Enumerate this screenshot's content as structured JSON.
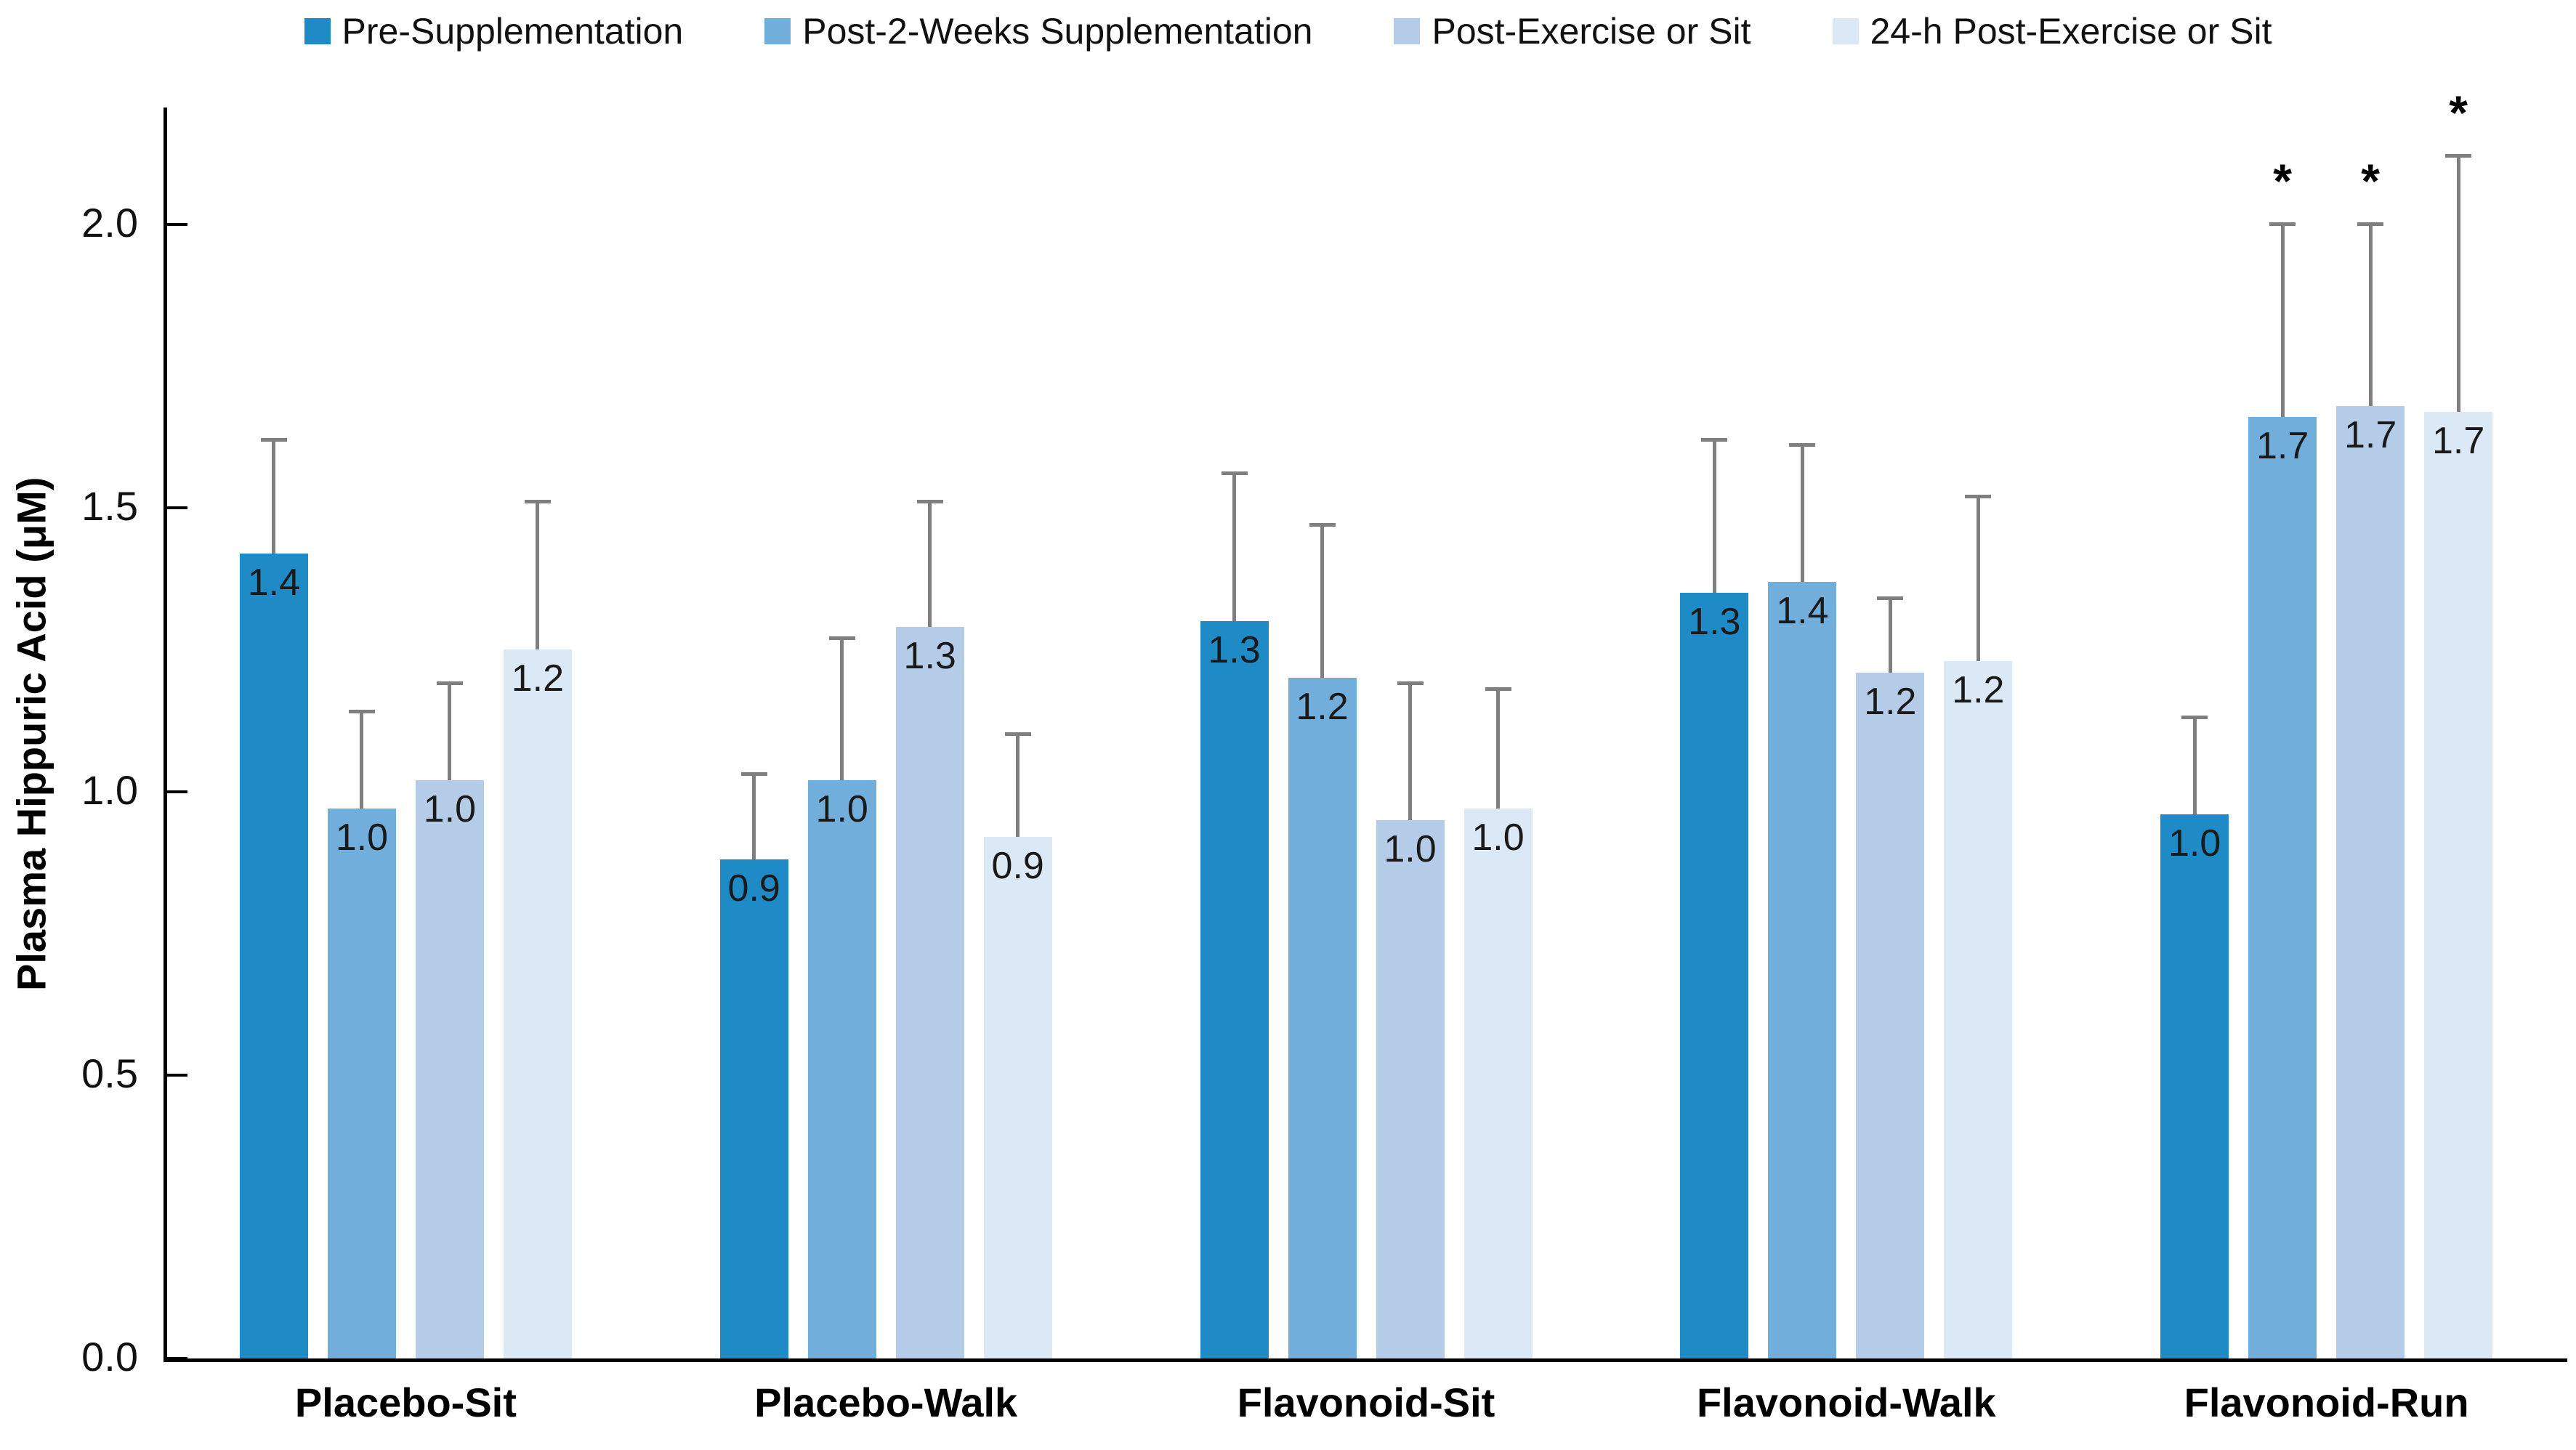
{
  "chart_data": {
    "type": "bar",
    "title": "",
    "ylabel": "Plasma Hippuric Acid (μM)",
    "xlabel": "",
    "ylim": [
      0,
      2.2
    ],
    "grid": false,
    "legend_position": "top",
    "y_ticks": [
      {
        "value": 0.0,
        "label": "0.0"
      },
      {
        "value": 0.5,
        "label": "0.5"
      },
      {
        "value": 1.0,
        "label": "1.0"
      },
      {
        "value": 1.5,
        "label": "1.5"
      },
      {
        "value": 2.0,
        "label": "2.0"
      }
    ],
    "categories": [
      "Placebo-Sit",
      "Placebo-Walk",
      "Flavonoid-Sit",
      "Flavonoid-Walk",
      "Flavonoid-Run"
    ],
    "significance_marker": "*",
    "error_bar_color": "#7f7f7f",
    "series": [
      {
        "name": "Pre-Supplementation",
        "color": "#1E8BC7",
        "values": [
          1.42,
          0.88,
          1.3,
          1.35,
          0.96
        ],
        "data_labels": [
          "1.4",
          "0.9",
          "1.3",
          "1.3",
          "1.0"
        ],
        "error_tops": [
          1.62,
          1.03,
          1.56,
          1.62,
          1.13
        ],
        "significant": [
          false,
          false,
          false,
          false,
          false
        ]
      },
      {
        "name": "Post-2-Weeks Supplementation",
        "color": "#71AEDC",
        "values": [
          0.97,
          1.02,
          1.2,
          1.37,
          1.66
        ],
        "data_labels": [
          "1.0",
          "1.0",
          "1.2",
          "1.4",
          "1.7"
        ],
        "error_tops": [
          1.14,
          1.27,
          1.47,
          1.61,
          2.0
        ],
        "significant": [
          false,
          false,
          false,
          false,
          true
        ]
      },
      {
        "name": "Post-Exercise or Sit",
        "color": "#B4CCE7",
        "values": [
          1.02,
          1.29,
          0.95,
          1.21,
          1.68
        ],
        "data_labels": [
          "1.0",
          "1.3",
          "1.0",
          "1.2",
          "1.7"
        ],
        "error_tops": [
          1.19,
          1.51,
          1.19,
          1.34,
          2.0
        ],
        "significant": [
          false,
          false,
          false,
          false,
          true
        ]
      },
      {
        "name": "24-h Post-Exercise or Sit",
        "color": "#DBE9F6",
        "values": [
          1.25,
          0.92,
          0.97,
          1.23,
          1.67
        ],
        "data_labels": [
          "1.2",
          "0.9",
          "1.0",
          "1.2",
          "1.7"
        ],
        "error_tops": [
          1.51,
          1.1,
          1.18,
          1.52,
          2.12
        ],
        "significant": [
          false,
          false,
          false,
          false,
          true
        ]
      }
    ]
  }
}
